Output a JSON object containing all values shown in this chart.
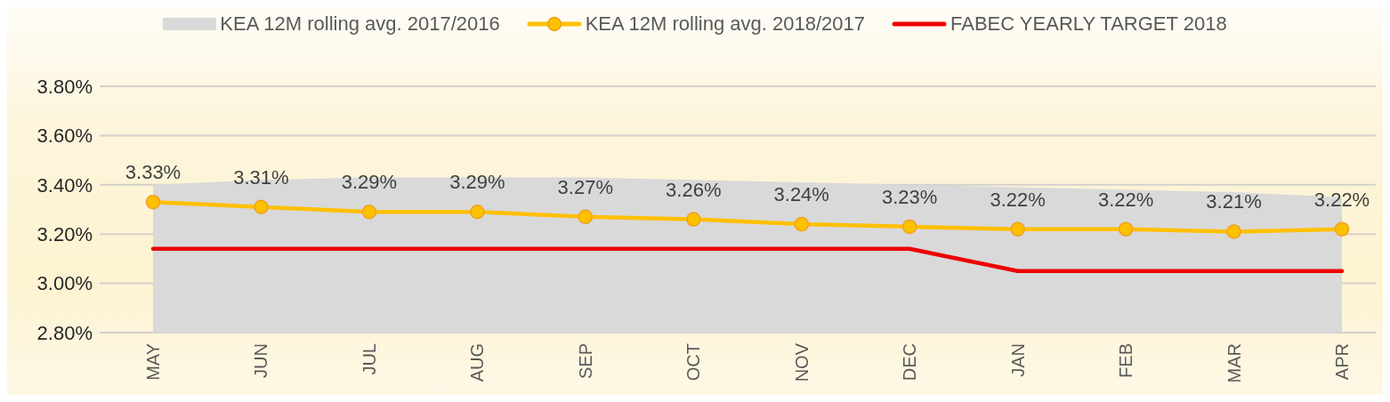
{
  "chart_data": {
    "type": "line",
    "categories": [
      "MAY",
      "JUN",
      "JUL",
      "AUG",
      "SEP",
      "OCT",
      "NOV",
      "DEC",
      "JAN",
      "FEB",
      "MAR",
      "APR"
    ],
    "series": [
      {
        "name": "KEA 12M rolling avg. 2017/2016",
        "type": "area",
        "color": "#d9d9d9",
        "values": [
          3.4,
          3.42,
          3.43,
          3.43,
          3.43,
          3.42,
          3.41,
          3.4,
          3.39,
          3.38,
          3.37,
          3.35
        ]
      },
      {
        "name": "KEA 12M rolling avg. 2018/2017",
        "color": "#ffc000",
        "marker": "circle",
        "values": [
          3.33,
          3.31,
          3.29,
          3.29,
          3.27,
          3.26,
          3.24,
          3.23,
          3.22,
          3.22,
          3.21,
          3.22
        ],
        "value_labels": [
          "3.33%",
          "3.31%",
          "3.29%",
          "3.29%",
          "3.27%",
          "3.26%",
          "3.24%",
          "3.23%",
          "3.22%",
          "3.22%",
          "3.21%",
          "3.22%"
        ]
      },
      {
        "name": "FABEC YEARLY TARGET 2018",
        "color": "#ee0000",
        "marker": "none",
        "values": [
          3.14,
          3.14,
          3.14,
          3.14,
          3.14,
          3.14,
          3.14,
          3.14,
          3.05,
          3.05,
          3.05,
          3.05
        ]
      }
    ],
    "ylim": [
      2.8,
      3.8
    ],
    "yticks": [
      {
        "value": 2.8,
        "label": "2.80%"
      },
      {
        "value": 3.0,
        "label": "3.00%"
      },
      {
        "value": 3.2,
        "label": "3.20%"
      },
      {
        "value": 3.4,
        "label": "3.40%"
      },
      {
        "value": 3.6,
        "label": "3.60%"
      },
      {
        "value": 3.8,
        "label": "3.80%"
      }
    ],
    "grid": "y",
    "legend": "top"
  }
}
